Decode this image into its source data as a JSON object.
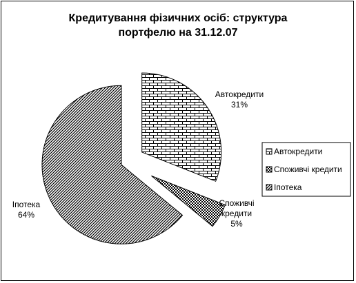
{
  "chart_data": {
    "type": "pie",
    "title": "Кредитування фізичних осіб: структура портфелю на 31.12.07",
    "categories": [
      "Автокредити",
      "Споживчі кредити",
      "Іпотека"
    ],
    "values": [
      31,
      5,
      64
    ],
    "value_labels": [
      "31%",
      "5%",
      "64%"
    ],
    "legend": "right"
  }
}
